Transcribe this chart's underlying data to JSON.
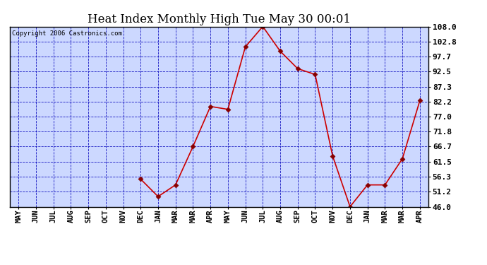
{
  "title": "Heat Index Monthly High Tue May 30 00:01",
  "copyright": "Copyright 2006 Castronics.com",
  "x_labels": [
    "MAY",
    "JUN",
    "JUL",
    "AUG",
    "SEP",
    "OCT",
    "NOV",
    "DEC",
    "JAN",
    "MAR",
    "MAR",
    "APR",
    "MAY",
    "JUN",
    "JUL",
    "AUG",
    "SEP",
    "OCT",
    "NOV",
    "DEC",
    "JAN",
    "MAR",
    "MAR",
    "APR"
  ],
  "y_values": [
    null,
    null,
    null,
    null,
    null,
    null,
    null,
    55.5,
    49.5,
    53.5,
    66.7,
    80.5,
    79.5,
    101.0,
    108.0,
    99.5,
    93.5,
    91.5,
    63.5,
    46.0,
    53.5,
    53.5,
    62.5,
    82.5
  ],
  "y_ticks": [
    108.0,
    102.8,
    97.7,
    92.5,
    87.3,
    82.2,
    77.0,
    71.8,
    66.7,
    61.5,
    56.3,
    51.2,
    46.0
  ],
  "ylim": [
    46.0,
    108.0
  ],
  "line_color": "#cc0000",
  "marker_color": "#880000",
  "bg_color": "#ffffff",
  "plot_bg_color": "#ccd8ff",
  "grid_color": "#0000bb",
  "title_fontsize": 12,
  "copyright_fontsize": 6.5,
  "axis_label_fontsize": 7.5,
  "tick_fontsize": 8
}
